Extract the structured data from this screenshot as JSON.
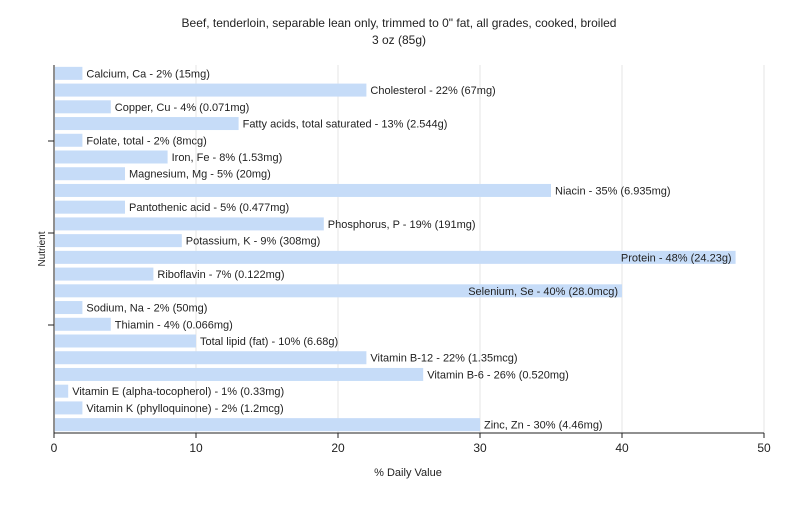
{
  "chart_data": {
    "type": "bar",
    "orientation": "horizontal",
    "title": "Beef, tenderloin, separable lean only, trimmed to 0\" fat, all grades, cooked, broiled",
    "subtitle": "3 oz (85g)",
    "xlabel": "% Daily Value",
    "ylabel": "Nutrient",
    "xlim": [
      0,
      50
    ],
    "x_ticks": [
      0,
      10,
      20,
      30,
      40,
      50
    ],
    "grid": true,
    "bar_color": "#c6dcf8",
    "categories": [
      "Calcium, Ca",
      "Cholesterol",
      "Copper, Cu",
      "Fatty acids, total saturated",
      "Folate, total",
      "Iron, Fe",
      "Magnesium, Mg",
      "Niacin",
      "Pantothenic acid",
      "Phosphorus, P",
      "Potassium, K",
      "Protein",
      "Riboflavin",
      "Selenium, Se",
      "Sodium, Na",
      "Thiamin",
      "Total lipid (fat)",
      "Vitamin B-12",
      "Vitamin B-6",
      "Vitamin E (alpha-tocopherol)",
      "Vitamin K (phylloquinone)",
      "Zinc, Zn"
    ],
    "values": [
      2,
      22,
      4,
      13,
      2,
      8,
      5,
      35,
      5,
      19,
      9,
      48,
      7,
      40,
      2,
      4,
      10,
      22,
      26,
      1,
      2,
      30
    ],
    "labels": [
      "Calcium, Ca - 2% (15mg)",
      "Cholesterol - 22% (67mg)",
      "Copper, Cu - 4% (0.071mg)",
      "Fatty acids, total saturated - 13% (2.544g)",
      "Folate, total - 2% (8mcg)",
      "Iron, Fe - 8% (1.53mg)",
      "Magnesium, Mg - 5% (20mg)",
      "Niacin - 35% (6.935mg)",
      "Pantothenic acid - 5% (0.477mg)",
      "Phosphorus, P - 19% (191mg)",
      "Potassium, K - 9% (308mg)",
      "Protein - 48% (24.23g)",
      "Riboflavin - 7% (0.122mg)",
      "Selenium, Se - 40% (28.0mcg)",
      "Sodium, Na - 2% (50mg)",
      "Thiamin - 4% (0.066mg)",
      "Total lipid (fat) - 10% (6.68g)",
      "Vitamin B-12 - 22% (1.35mcg)",
      "Vitamin B-6 - 26% (0.520mg)",
      "Vitamin E (alpha-tocopherol) - 1% (0.33mg)",
      "Vitamin K (phylloquinone) - 2% (1.2mcg)",
      "Zinc, Zn - 30% (4.46mg)"
    ]
  }
}
